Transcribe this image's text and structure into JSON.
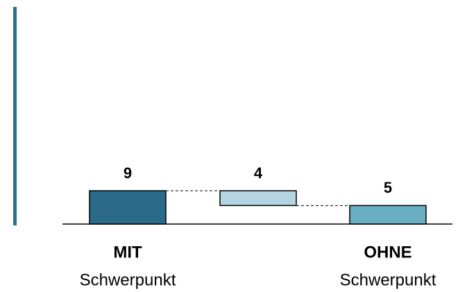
{
  "chart_data": {
    "type": "waterfall",
    "categories": [
      "MIT",
      null,
      "OHNE"
    ],
    "category_sublabels": [
      "Schwerpunkt",
      null,
      "Schwerpunkt"
    ],
    "values": [
      9,
      4,
      5
    ],
    "measures": [
      "total",
      "decrease",
      "total"
    ],
    "colors": [
      "#2a6a88",
      "#b3d4e0",
      "#6aaec4"
    ]
  }
}
